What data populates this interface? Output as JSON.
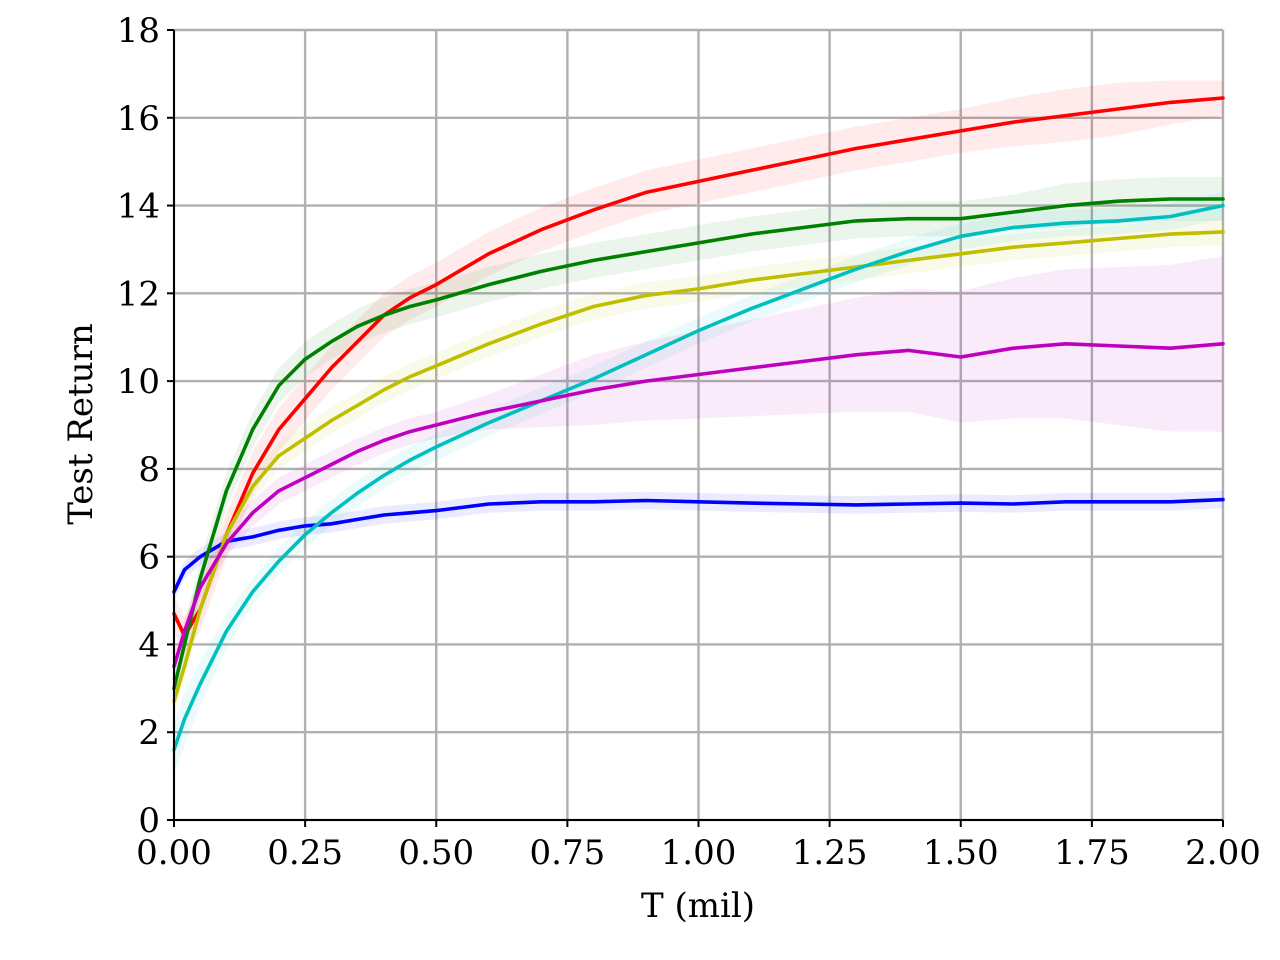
{
  "chart_data": {
    "type": "line",
    "xlabel": "T (mil)",
    "ylabel": "Test Return",
    "xlim": [
      0,
      2
    ],
    "ylim": [
      0,
      18
    ],
    "xticks": [
      "0.00",
      "0.25",
      "0.50",
      "0.75",
      "1.00",
      "1.25",
      "1.50",
      "1.75",
      "2.00"
    ],
    "yticks": [
      "0",
      "2",
      "4",
      "6",
      "8",
      "10",
      "12",
      "14",
      "16",
      "18"
    ],
    "grid": true,
    "legend": "none",
    "x": [
      0.0,
      0.02,
      0.05,
      0.1,
      0.15,
      0.2,
      0.25,
      0.3,
      0.35,
      0.4,
      0.45,
      0.5,
      0.6,
      0.7,
      0.8,
      0.9,
      1.0,
      1.1,
      1.2,
      1.3,
      1.4,
      1.5,
      1.6,
      1.7,
      1.8,
      1.9,
      2.0
    ],
    "series": [
      {
        "color": "#0000ff",
        "values": [
          5.2,
          5.7,
          6.0,
          6.35,
          6.45,
          6.6,
          6.7,
          6.75,
          6.85,
          6.95,
          7.0,
          7.05,
          7.2,
          7.25,
          7.25,
          7.28,
          7.25,
          7.22,
          7.2,
          7.18,
          7.2,
          7.22,
          7.2,
          7.25,
          7.25,
          7.25,
          7.3
        ],
        "band": [
          0.2,
          0.2,
          0.2,
          0.2,
          0.2,
          0.2,
          0.2,
          0.2,
          0.2,
          0.2,
          0.2,
          0.2,
          0.2,
          0.2,
          0.2,
          0.2,
          0.2,
          0.2,
          0.2,
          0.2,
          0.2,
          0.2,
          0.2,
          0.2,
          0.2,
          0.2,
          0.2
        ]
      },
      {
        "color": "#ff0000",
        "values": [
          4.7,
          4.2,
          4.8,
          6.5,
          7.9,
          8.9,
          9.6,
          10.3,
          10.9,
          11.5,
          11.9,
          12.2,
          12.9,
          13.45,
          13.9,
          14.3,
          14.55,
          14.8,
          15.05,
          15.3,
          15.5,
          15.7,
          15.9,
          16.05,
          16.2,
          16.35,
          16.45
        ],
        "band": [
          0.4,
          0.4,
          0.5,
          0.5,
          0.5,
          0.5,
          0.5,
          0.5,
          0.5,
          0.5,
          0.5,
          0.5,
          0.5,
          0.5,
          0.5,
          0.5,
          0.5,
          0.5,
          0.5,
          0.5,
          0.5,
          0.5,
          0.55,
          0.6,
          0.6,
          0.5,
          0.4
        ]
      },
      {
        "color": "#008000",
        "values": [
          3.0,
          4.0,
          5.5,
          7.5,
          8.9,
          9.9,
          10.5,
          10.9,
          11.25,
          11.5,
          11.7,
          11.85,
          12.2,
          12.5,
          12.75,
          12.95,
          13.15,
          13.35,
          13.5,
          13.65,
          13.7,
          13.7,
          13.85,
          14.0,
          14.1,
          14.15,
          14.15
        ],
        "band": [
          0.4,
          0.4,
          0.4,
          0.4,
          0.4,
          0.4,
          0.4,
          0.4,
          0.4,
          0.4,
          0.4,
          0.4,
          0.4,
          0.4,
          0.4,
          0.4,
          0.4,
          0.4,
          0.4,
          0.4,
          0.4,
          0.4,
          0.4,
          0.5,
          0.5,
          0.5,
          0.5
        ]
      },
      {
        "color": "#bfbf00",
        "values": [
          2.7,
          3.5,
          4.8,
          6.5,
          7.6,
          8.3,
          8.7,
          9.1,
          9.45,
          9.8,
          10.1,
          10.35,
          10.85,
          11.3,
          11.7,
          11.95,
          12.1,
          12.3,
          12.45,
          12.6,
          12.75,
          12.9,
          13.05,
          13.15,
          13.25,
          13.35,
          13.4
        ],
        "band": [
          0.3,
          0.3,
          0.3,
          0.3,
          0.3,
          0.3,
          0.3,
          0.3,
          0.3,
          0.3,
          0.3,
          0.3,
          0.3,
          0.3,
          0.3,
          0.3,
          0.3,
          0.3,
          0.3,
          0.3,
          0.3,
          0.3,
          0.3,
          0.3,
          0.3,
          0.3,
          0.3
        ]
      },
      {
        "color": "#00bfbf",
        "values": [
          1.6,
          2.3,
          3.1,
          4.3,
          5.2,
          5.9,
          6.5,
          7.0,
          7.45,
          7.85,
          8.2,
          8.5,
          9.05,
          9.55,
          10.05,
          10.6,
          11.15,
          11.65,
          12.1,
          12.55,
          12.95,
          13.3,
          13.5,
          13.6,
          13.65,
          13.75,
          14.0
        ],
        "band": [
          0.6,
          0.6,
          0.5,
          0.4,
          0.3,
          0.3,
          0.3,
          0.3,
          0.3,
          0.3,
          0.3,
          0.3,
          0.3,
          0.3,
          0.3,
          0.3,
          0.3,
          0.3,
          0.3,
          0.3,
          0.3,
          0.3,
          0.3,
          0.3,
          0.3,
          0.3,
          0.3
        ]
      },
      {
        "color": "#bf00bf",
        "values": [
          3.5,
          4.3,
          5.3,
          6.3,
          7.0,
          7.5,
          7.8,
          8.1,
          8.4,
          8.65,
          8.85,
          9.0,
          9.3,
          9.55,
          9.8,
          10.0,
          10.15,
          10.3,
          10.45,
          10.6,
          10.7,
          10.55,
          10.75,
          10.85,
          10.8,
          10.75,
          10.85
        ],
        "band": [
          0.3,
          0.3,
          0.3,
          0.3,
          0.3,
          0.3,
          0.3,
          0.3,
          0.3,
          0.3,
          0.3,
          0.3,
          0.4,
          0.6,
          0.8,
          0.9,
          1.0,
          1.1,
          1.2,
          1.3,
          1.4,
          1.5,
          1.6,
          1.7,
          1.8,
          1.9,
          2.0
        ]
      }
    ]
  }
}
